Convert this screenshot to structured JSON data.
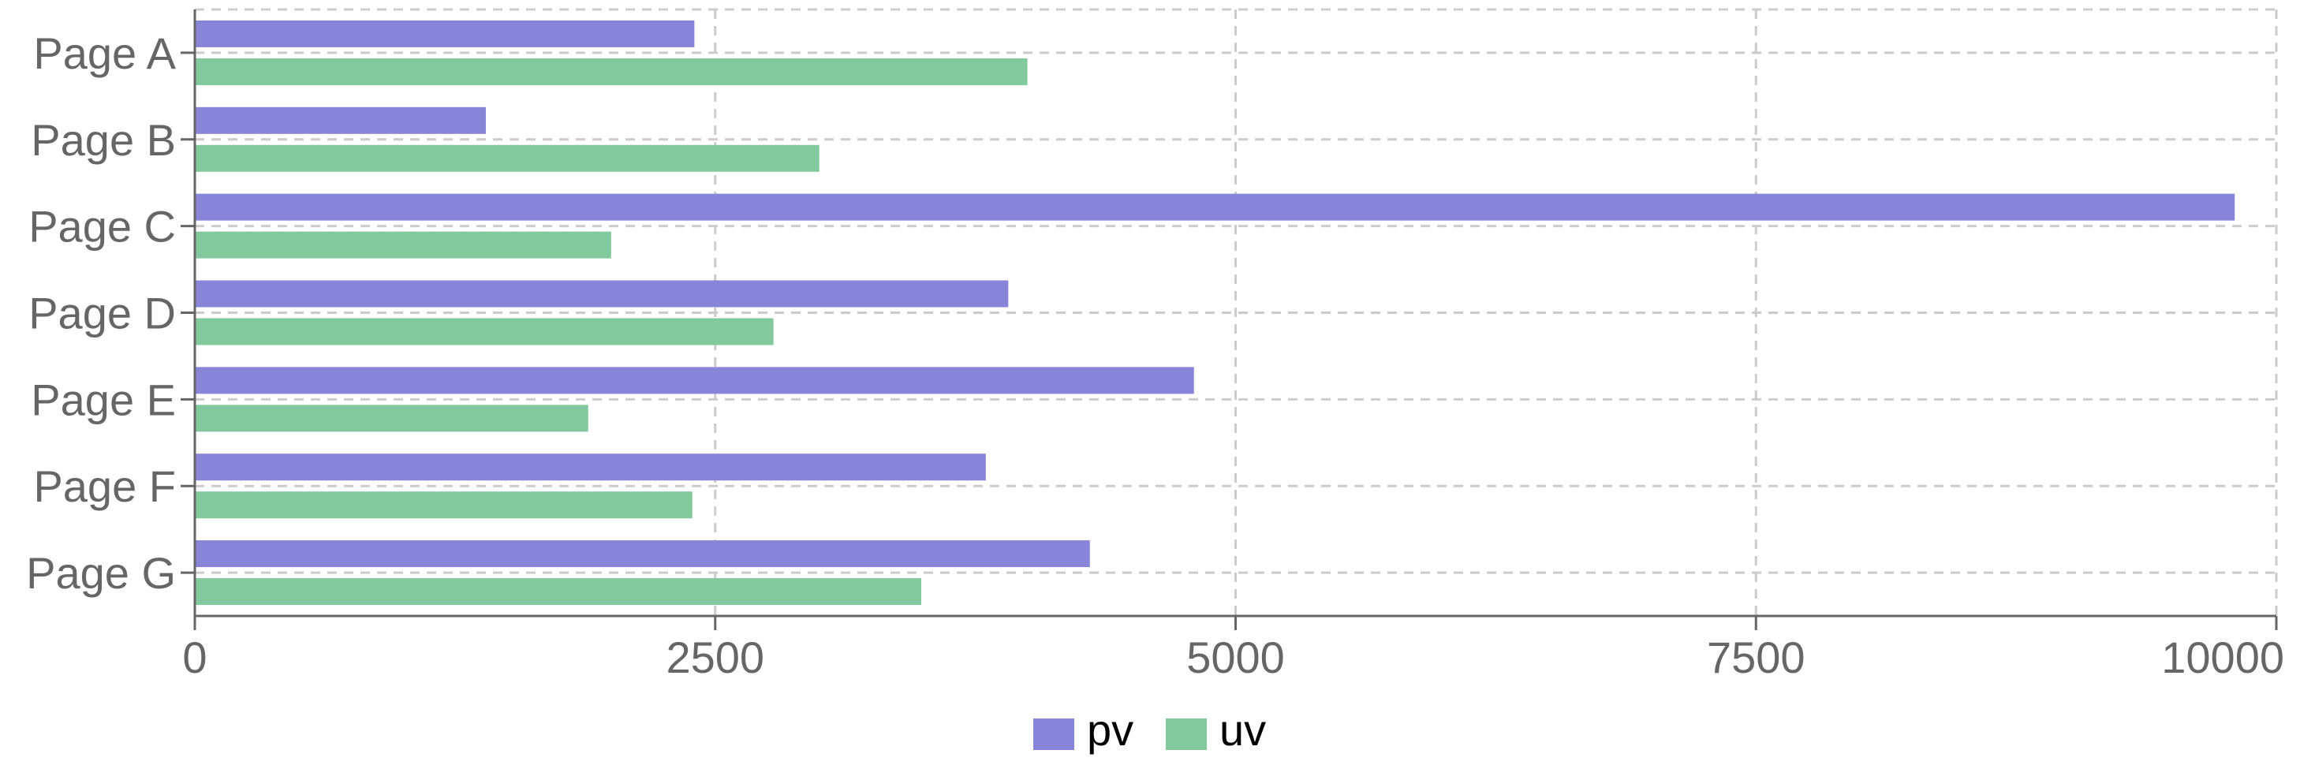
{
  "chart_data": {
    "type": "bar",
    "orientation": "horizontal",
    "categories": [
      "Page A",
      "Page B",
      "Page C",
      "Page D",
      "Page E",
      "Page F",
      "Page G"
    ],
    "series": [
      {
        "name": "pv",
        "color": "#8884d8",
        "values": [
          2400,
          1398,
          9800,
          3908,
          4800,
          3800,
          4300
        ]
      },
      {
        "name": "uv",
        "color": "#82ca9d",
        "values": [
          4000,
          3000,
          2000,
          2780,
          1890,
          2390,
          3490
        ]
      }
    ],
    "x_ticks": [
      0,
      2500,
      5000,
      7500,
      10000
    ],
    "xlim": [
      0,
      10000
    ],
    "grid": true,
    "legend_position": "bottom-center"
  }
}
